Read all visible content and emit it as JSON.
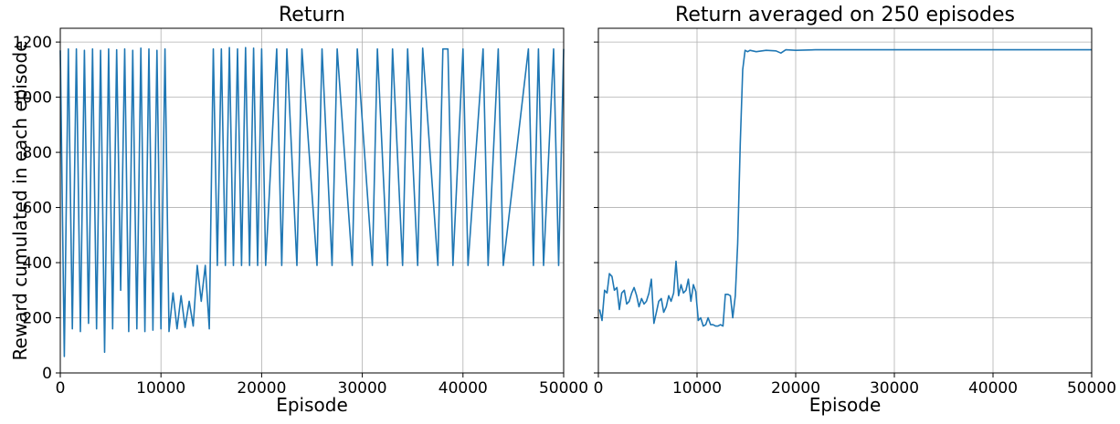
{
  "chart_data": [
    {
      "type": "line",
      "title": "Return",
      "xlabel": "Episode",
      "ylabel": "Reward cumulated in each episode",
      "xlim": [
        0,
        50000
      ],
      "ylim": [
        0,
        1250
      ],
      "xticks": [
        0,
        10000,
        20000,
        30000,
        40000,
        50000
      ],
      "yticks": [
        0,
        200,
        400,
        600,
        800,
        1000,
        1200
      ],
      "grid": true,
      "color": "#1f77b4",
      "series": [
        {
          "x": [
            0,
            400,
            800,
            1200,
            1600,
            2000,
            2400,
            2800,
            3200,
            3600,
            4000,
            4400,
            4800,
            5200,
            5600,
            6000,
            6400,
            6800,
            7200,
            7600,
            8000,
            8400,
            8800,
            9200,
            9600,
            10000,
            10400,
            10800,
            11200,
            11600,
            12000,
            12400,
            12800,
            13200,
            13600,
            14000,
            14400,
            14800,
            15200,
            15600,
            16000,
            16400,
            16800,
            17200,
            17600,
            18000,
            18400,
            18800,
            19200,
            19600,
            20000,
            20400,
            21500,
            22000,
            22500,
            23500,
            24000,
            25500,
            26000,
            27000,
            27500,
            29000,
            29500,
            31000,
            31500,
            32500,
            33000,
            34000,
            34500,
            35500,
            36000,
            37500,
            38000,
            38500,
            39000,
            40000,
            40500,
            42000,
            42500,
            43500,
            44000,
            46500,
            47000,
            47500,
            48000,
            49000,
            49500,
            50000
          ],
          "y": [
            1170,
            60,
            1175,
            160,
            1175,
            150,
            1170,
            180,
            1175,
            160,
            1170,
            75,
            1175,
            160,
            1172,
            300,
            1175,
            150,
            1170,
            160,
            1178,
            150,
            1175,
            155,
            1170,
            160,
            1175,
            150,
            290,
            160,
            280,
            165,
            260,
            170,
            390,
            260,
            390,
            160,
            1175,
            390,
            1175,
            390,
            1180,
            390,
            1175,
            390,
            1180,
            390,
            1178,
            390,
            1175,
            390,
            1175,
            390,
            1175,
            390,
            1175,
            390,
            1175,
            390,
            1175,
            390,
            1175,
            390,
            1175,
            390,
            1175,
            390,
            1175,
            390,
            1178,
            390,
            1175,
            1175,
            390,
            1175,
            390,
            1175,
            390,
            1175,
            390,
            1175,
            390,
            1175,
            390,
            1175,
            390,
            1175
          ]
        }
      ]
    },
    {
      "type": "line",
      "title": "Return averaged on 250 episodes",
      "xlabel": "Episode",
      "ylabel": "",
      "xlim": [
        0,
        50000
      ],
      "ylim": [
        0,
        1250
      ],
      "xticks": [
        0,
        10000,
        20000,
        30000,
        40000,
        50000
      ],
      "yticks": [
        0,
        200,
        400,
        600,
        800,
        1000,
        1200
      ],
      "grid": true,
      "color": "#1f77b4",
      "series": [
        {
          "x": [
            125,
            375,
            625,
            875,
            1125,
            1375,
            1625,
            1875,
            2125,
            2375,
            2625,
            2875,
            3125,
            3375,
            3625,
            3875,
            4125,
            4375,
            4625,
            4875,
            5125,
            5375,
            5625,
            5875,
            6125,
            6375,
            6625,
            6875,
            7125,
            7375,
            7625,
            7875,
            8125,
            8375,
            8625,
            8875,
            9125,
            9375,
            9625,
            9875,
            10125,
            10375,
            10625,
            10875,
            11125,
            11375,
            11625,
            11875,
            12125,
            12375,
            12625,
            12875,
            13125,
            13375,
            13625,
            13875,
            14125,
            14375,
            14625,
            14875,
            15125,
            15375,
            16000,
            17000,
            18000,
            18500,
            19000,
            20000,
            22000,
            25000,
            30000,
            35000,
            40000,
            45000,
            50000
          ],
          "y": [
            230,
            190,
            300,
            290,
            360,
            350,
            300,
            310,
            230,
            290,
            300,
            250,
            260,
            290,
            310,
            280,
            240,
            270,
            250,
            260,
            290,
            340,
            180,
            220,
            260,
            270,
            220,
            240,
            280,
            260,
            290,
            405,
            280,
            320,
            290,
            300,
            340,
            260,
            320,
            295,
            190,
            200,
            170,
            175,
            200,
            175,
            175,
            170,
            170,
            175,
            170,
            285,
            285,
            280,
            200,
            280,
            470,
            830,
            1100,
            1170,
            1165,
            1170,
            1165,
            1170,
            1168,
            1160,
            1172,
            1170,
            1172,
            1172,
            1172,
            1172,
            1172,
            1172,
            1172
          ]
        }
      ]
    }
  ]
}
